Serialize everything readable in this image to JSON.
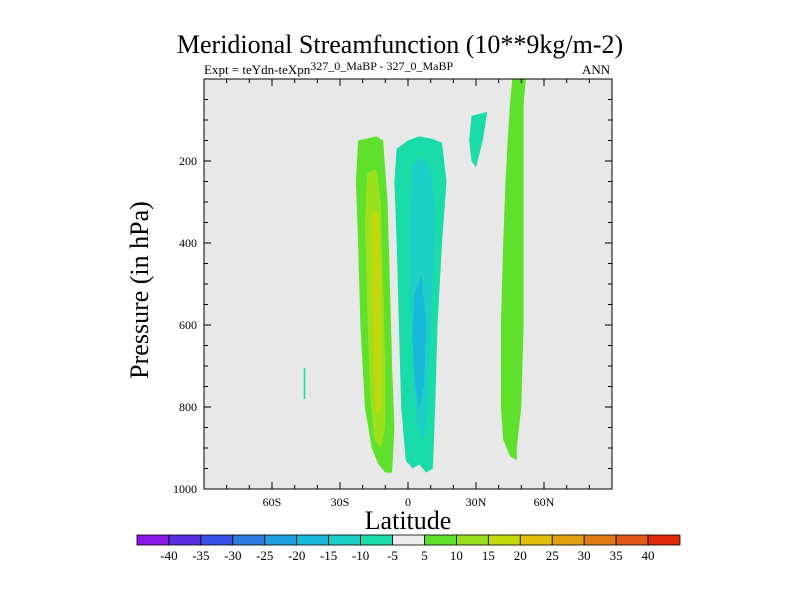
{
  "chart_data": {
    "type": "heatmap",
    "title": "Meridional Streamfunction (10**9kg/m-2)",
    "subtitle_main": "Expt = teYdn-teXpn",
    "subtitle_sup": "327_0_MaBP - 327_0_MaBP",
    "season": "ANN",
    "xlabel": "Latitude",
    "ylabel": "Pressure (in hPa)",
    "xlim": [
      -90,
      90
    ],
    "ylim": [
      1000,
      0
    ],
    "x_ticks": [
      -60,
      -30,
      0,
      30,
      60
    ],
    "x_tick_labels": [
      "60S",
      "30S",
      "0",
      "30N",
      "60N"
    ],
    "y_ticks": [
      200,
      400,
      600,
      800,
      1000
    ],
    "y_tick_labels": [
      "200",
      "400",
      "600",
      "800",
      "1000"
    ],
    "colorbar": {
      "labels": [
        "-40",
        "-35",
        "-30",
        "-25",
        "-20",
        "-15",
        "-10",
        "-5",
        "5",
        "10",
        "15",
        "20",
        "25",
        "30",
        "35",
        "40"
      ],
      "colors": [
        "#8b1ae6",
        "#5b2ee0",
        "#3a4fe6",
        "#2b7be0",
        "#1d9fe0",
        "#17b8d8",
        "#1cd0c8",
        "#19dca8",
        "#ececec",
        "#5ee02c",
        "#9be01c",
        "#c4d80e",
        "#e0c00a",
        "#e0a00f",
        "#e07a16",
        "#e05816",
        "#e02a0c"
      ]
    },
    "regions": [
      {
        "name": "sh-positive-cell",
        "level": "5",
        "color": "#5ee02c",
        "points": [
          [
            -22,
            150
          ],
          [
            -14,
            140
          ],
          [
            -11,
            150
          ],
          [
            -9,
            300
          ],
          [
            -8,
            500
          ],
          [
            -7,
            700
          ],
          [
            -6,
            850
          ],
          [
            -7,
            960
          ],
          [
            -10,
            960
          ],
          [
            -13,
            940
          ],
          [
            -16,
            900
          ],
          [
            -19,
            800
          ],
          [
            -21,
            600
          ],
          [
            -22,
            400
          ],
          [
            -23,
            250
          ]
        ]
      },
      {
        "name": "sh-positive-core-10",
        "level": "10",
        "color": "#9be01c",
        "points": [
          [
            -18,
            230
          ],
          [
            -14,
            220
          ],
          [
            -12,
            300
          ],
          [
            -11,
            500
          ],
          [
            -10,
            700
          ],
          [
            -10,
            850
          ],
          [
            -12,
            900
          ],
          [
            -15,
            880
          ],
          [
            -17,
            750
          ],
          [
            -18,
            550
          ],
          [
            -19,
            350
          ]
        ]
      },
      {
        "name": "sh-positive-core-15",
        "level": "15",
        "color": "#c4d80e",
        "points": [
          [
            -16,
            330
          ],
          [
            -13,
            320
          ],
          [
            -12,
            450
          ],
          [
            -12,
            650
          ],
          [
            -12,
            800
          ],
          [
            -14,
            820
          ],
          [
            -15,
            700
          ],
          [
            -16,
            500
          ]
        ]
      },
      {
        "name": "eq-negative-cell",
        "level": "-5",
        "color": "#19dca8",
        "points": [
          [
            -5,
            170
          ],
          [
            0,
            150
          ],
          [
            5,
            140
          ],
          [
            10,
            145
          ],
          [
            15,
            155
          ],
          [
            17,
            250
          ],
          [
            15,
            400
          ],
          [
            13,
            600
          ],
          [
            12,
            800
          ],
          [
            11,
            950
          ],
          [
            8,
            960
          ],
          [
            5,
            940
          ],
          [
            2,
            950
          ],
          [
            -1,
            930
          ],
          [
            -3,
            800
          ],
          [
            -4,
            600
          ],
          [
            -5,
            400
          ],
          [
            -6,
            250
          ]
        ]
      },
      {
        "name": "eq-negative-core-10",
        "level": "-10",
        "color": "#1cd0c8",
        "points": [
          [
            2,
            210
          ],
          [
            6,
            190
          ],
          [
            10,
            220
          ],
          [
            12,
            330
          ],
          [
            11,
            500
          ],
          [
            9,
            700
          ],
          [
            8,
            850
          ],
          [
            6,
            880
          ],
          [
            4,
            840
          ],
          [
            2,
            700
          ],
          [
            1,
            500
          ],
          [
            1,
            330
          ]
        ]
      },
      {
        "name": "eq-negative-core-15",
        "level": "-15",
        "color": "#17b8d8",
        "points": [
          [
            3,
            520
          ],
          [
            6,
            480
          ],
          [
            8,
            600
          ],
          [
            7,
            750
          ],
          [
            5,
            800
          ],
          [
            3,
            740
          ],
          [
            2,
            620
          ]
        ]
      },
      {
        "name": "tropics-negative-patch",
        "level": "-5",
        "color": "#19dca8",
        "points": [
          [
            28,
            90
          ],
          [
            35,
            80
          ],
          [
            33,
            150
          ],
          [
            30,
            215
          ],
          [
            28,
            200
          ],
          [
            27,
            150
          ]
        ]
      },
      {
        "name": "nh-positive-cell",
        "level": "5",
        "color": "#5ee02c",
        "points": [
          [
            46,
            0
          ],
          [
            52,
            0
          ],
          [
            51,
            60
          ],
          [
            51,
            200
          ],
          [
            51,
            400
          ],
          [
            51,
            600
          ],
          [
            50,
            800
          ],
          [
            48,
            900
          ],
          [
            48,
            930
          ],
          [
            45,
            920
          ],
          [
            42,
            880
          ],
          [
            41,
            800
          ],
          [
            41,
            600
          ],
          [
            42,
            400
          ],
          [
            43,
            250
          ],
          [
            44,
            150
          ],
          [
            45,
            60
          ]
        ]
      },
      {
        "name": "sh-negative-sliver",
        "level": "-5",
        "color": "#19dca8",
        "points": [
          [
            -46,
            705
          ],
          [
            -45.3,
            705
          ],
          [
            -45.3,
            780
          ],
          [
            -46,
            780
          ]
        ]
      }
    ]
  }
}
